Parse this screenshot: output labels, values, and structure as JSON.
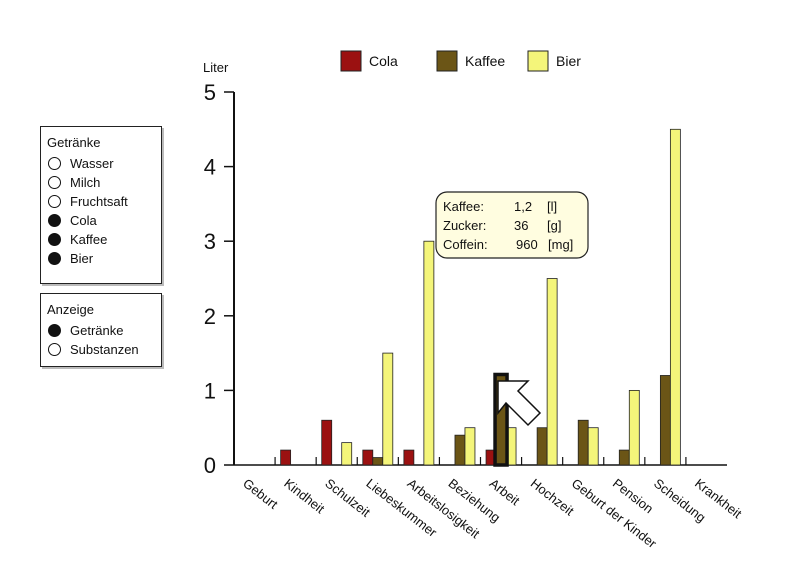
{
  "colors": {
    "cola": "#9b1111",
    "kaffee": "#6b5516",
    "bier": "#f4f57a",
    "axis": "#111111",
    "tooltip_bg": "#fffde0"
  },
  "panels": {
    "drinks": {
      "title": "Getränke",
      "options": [
        {
          "label": "Wasser",
          "selected": false
        },
        {
          "label": "Milch",
          "selected": false
        },
        {
          "label": "Fruchtsaft",
          "selected": false
        },
        {
          "label": "Cola",
          "selected": true
        },
        {
          "label": "Kaffee",
          "selected": true
        },
        {
          "label": "Bier",
          "selected": true
        }
      ]
    },
    "display": {
      "title": "Anzeige",
      "options": [
        {
          "label": "Getränke",
          "selected": true
        },
        {
          "label": "Substanzen",
          "selected": false
        }
      ]
    }
  },
  "tooltip": {
    "rows": [
      {
        "name": "Kaffee:",
        "value": "1,2",
        "unit": "[l]"
      },
      {
        "name": "Zucker:",
        "value": "36",
        "unit": "[g]"
      },
      {
        "name": "Coffein:",
        "value": "960",
        "unit": "[mg]"
      }
    ]
  },
  "chart_data": {
    "type": "bar",
    "ylabel": "Liter",
    "ylim": [
      0,
      5
    ],
    "yticks": [
      "0",
      "1",
      "2",
      "3",
      "4",
      "5"
    ],
    "legend_position": "top",
    "categories": [
      "Geburt",
      "Kindheit",
      "Schulzeit",
      "Liebeskummer",
      "Arbeitslosigkeit",
      "Beziehung",
      "Arbeit",
      "Hochzeit",
      "Geburt der Kinder",
      "Pension",
      "Scheidung",
      "Krankheit"
    ],
    "series": [
      {
        "name": "Cola",
        "color": "#9b1111",
        "values": [
          0,
          0.2,
          0.6,
          0.2,
          0.2,
          0,
          0.2,
          0,
          0,
          0,
          0,
          0
        ]
      },
      {
        "name": "Kaffee",
        "color": "#6b5516",
        "values": [
          0,
          0,
          0,
          0.1,
          0,
          0.4,
          1.2,
          0.5,
          0.6,
          0.2,
          1.2,
          0
        ]
      },
      {
        "name": "Bier",
        "color": "#f4f57a",
        "values": [
          0,
          0,
          0.3,
          1.5,
          3.0,
          0.5,
          0.5,
          2.5,
          0.5,
          1.0,
          4.5,
          0
        ]
      }
    ],
    "highlight": {
      "category": "Arbeit",
      "series": "Kaffee"
    }
  }
}
